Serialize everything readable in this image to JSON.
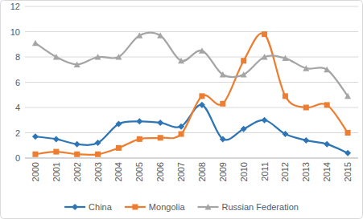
{
  "chart_data": {
    "type": "line",
    "categories": [
      "2000",
      "2001",
      "2002",
      "2003",
      "2004",
      "2005",
      "2006",
      "2007",
      "2008",
      "2009",
      "2010",
      "2011",
      "2012",
      "2013",
      "2014",
      "2015"
    ],
    "series": [
      {
        "name": "China",
        "color": "#2e75b6",
        "marker": "diamond",
        "line_style": "solid",
        "values": [
          1.7,
          1.5,
          1.1,
          1.2,
          2.7,
          2.9,
          2.8,
          2.5,
          4.2,
          1.5,
          2.3,
          3.0,
          1.9,
          1.4,
          1.1,
          0.4
        ]
      },
      {
        "name": "Mongolia",
        "color": "#ed7d31",
        "marker": "square",
        "line_style": "solid",
        "values": [
          0.3,
          0.5,
          0.3,
          0.3,
          0.8,
          1.5,
          1.6,
          1.9,
          4.9,
          4.3,
          7.7,
          9.8,
          4.9,
          4.0,
          4.2,
          2.0
        ]
      },
      {
        "name": "Russian Federation",
        "color": "#a5a5a5",
        "marker": "triangle",
        "line_style": "solid",
        "values": [
          9.1,
          8.0,
          7.4,
          8.0,
          8.0,
          9.7,
          9.7,
          7.7,
          8.5,
          6.6,
          6.6,
          8.0,
          7.9,
          7.1,
          7.0,
          4.9
        ]
      }
    ],
    "ylim": [
      0,
      12
    ],
    "yticks": [
      0,
      2,
      4,
      6,
      8,
      10,
      12
    ],
    "grid": true,
    "legend": "bottom"
  }
}
